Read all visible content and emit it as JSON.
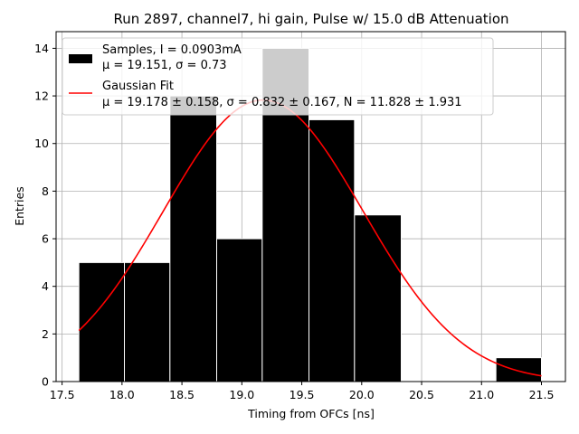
{
  "chart_data": {
    "type": "bar",
    "title": "Run 2897, channel7, hi gain, Pulse w/ 15.0 dB Attenuation",
    "xlabel": "Timing from OFCs [ns]",
    "ylabel": "Entries",
    "xlim": [
      17.45,
      21.7
    ],
    "ylim": [
      0,
      14.7
    ],
    "grid": true,
    "legend_position": "top-left",
    "xticks": [
      17.5,
      18.0,
      18.5,
      19.0,
      19.5,
      20.0,
      20.5,
      21.0,
      21.5
    ],
    "xtick_labels": [
      "17.5",
      "18.0",
      "18.5",
      "19.0",
      "19.5",
      "20.0",
      "20.5",
      "21.0",
      "21.5"
    ],
    "yticks": [
      0,
      2,
      4,
      6,
      8,
      10,
      12,
      14
    ],
    "ytick_labels": [
      "0",
      "2",
      "4",
      "6",
      "8",
      "10",
      "12",
      "14"
    ],
    "histogram": {
      "name": "Samples, I = 0.0903mA",
      "stats": "μ = 19.151, σ = 0.73",
      "color": "#000000",
      "bins": [
        {
          "x0": 17.64,
          "x1": 18.02,
          "count": 5
        },
        {
          "x0": 18.02,
          "x1": 18.4,
          "count": 5
        },
        {
          "x0": 18.4,
          "x1": 18.79,
          "count": 12
        },
        {
          "x0": 18.79,
          "x1": 19.17,
          "count": 6
        },
        {
          "x0": 19.17,
          "x1": 19.56,
          "count": 14
        },
        {
          "x0": 19.56,
          "x1": 19.94,
          "count": 11
        },
        {
          "x0": 19.94,
          "x1": 20.33,
          "count": 7
        },
        {
          "x0": 20.33,
          "x1": 20.71,
          "count": 0
        },
        {
          "x0": 20.71,
          "x1": 21.12,
          "count": 0
        },
        {
          "x0": 21.12,
          "x1": 21.5,
          "count": 1
        }
      ]
    },
    "fit": {
      "name": "Gaussian Fit",
      "stats": "μ = 19.178 ± 0.158, σ = 0.832 ± 0.167, N = 11.828 ± 1.931",
      "color": "#ff0000",
      "mu": 19.178,
      "sigma": 0.832,
      "amplitude": 11.828,
      "x_range": [
        17.64,
        21.5
      ]
    }
  }
}
